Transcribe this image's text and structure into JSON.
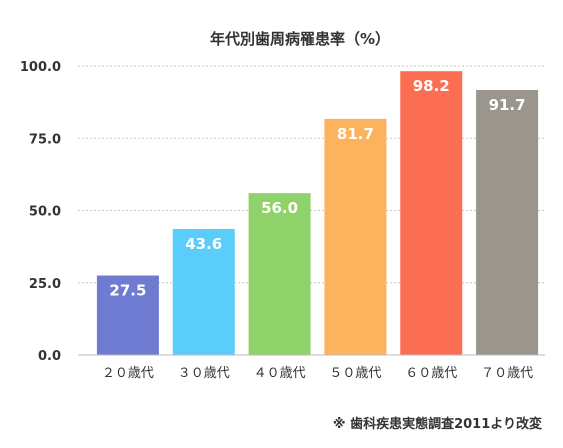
{
  "chart_data": {
    "type": "bar",
    "title": "年代別歯周病罹患率（%）",
    "categories": [
      "２０歳代",
      "３０歳代",
      "４０歳代",
      "５０歳代",
      "６０歳代",
      "７０歳代"
    ],
    "values": [
      27.5,
      43.6,
      56.0,
      81.7,
      98.2,
      91.7
    ],
    "value_labels": [
      "27.5",
      "43.6",
      "56.0",
      "81.7",
      "98.2",
      "91.7"
    ],
    "colors": [
      "#6e7bd0",
      "#5acdfa",
      "#8fd26a",
      "#fdb25e",
      "#fc6e51",
      "#9a958d"
    ],
    "yticks": [
      "0.0",
      "25.0",
      "50.0",
      "75.0",
      "100.0"
    ],
    "ylim": [
      0,
      100
    ],
    "grid": true,
    "legend": "none",
    "xlabel": "",
    "ylabel": ""
  },
  "footnote": "※ 歯科疾患実態調査2011より改変"
}
